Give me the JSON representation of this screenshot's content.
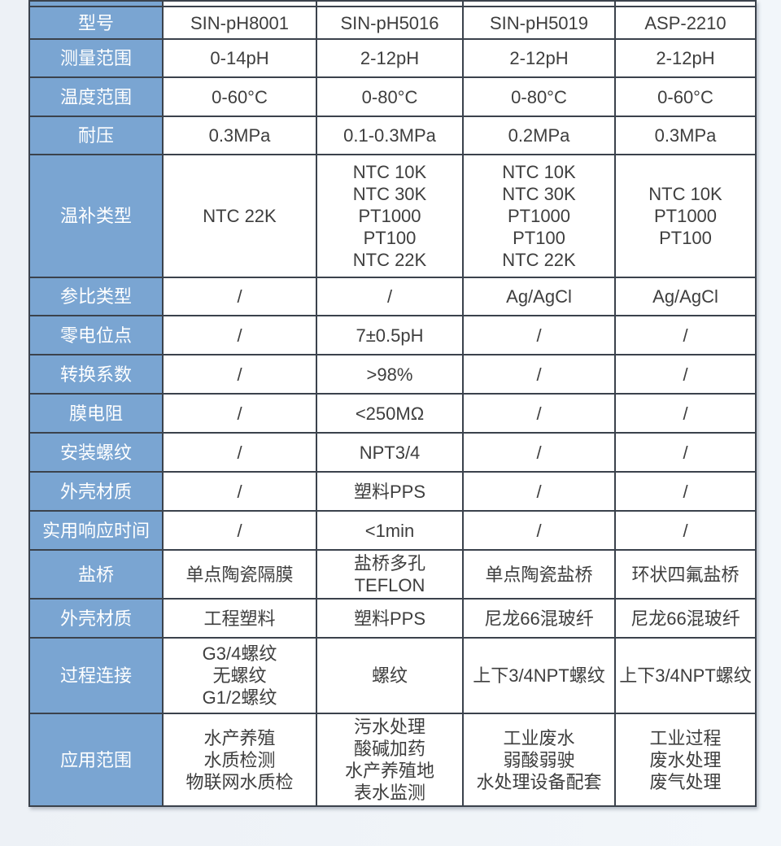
{
  "colors": {
    "header_cell_blue": "#7aa5d2",
    "header_text": "#ffffff",
    "cell_text": "#3e3e3e",
    "grid_border": "#3b424c",
    "page_background": "#f0f4f8",
    "cell_background": "#ffffff"
  },
  "table": {
    "rows": [
      {
        "header": "型号",
        "cells": [
          "SIN-pH8001",
          "SIN-pH5016",
          "SIN-pH5019",
          "ASP-2210"
        ]
      },
      {
        "header": "测量范围",
        "cells": [
          "0-14pH",
          "2-12pH",
          "2-12pH",
          "2-12pH"
        ]
      },
      {
        "header": "温度范围",
        "cells": [
          "0-60°C",
          "0-80°C",
          "0-80°C",
          "0-60°C"
        ]
      },
      {
        "header": "耐压",
        "cells": [
          "0.3MPa",
          "0.1-0.3MPa",
          "0.2MPa",
          "0.3MPa"
        ]
      },
      {
        "header": "温补类型",
        "cells": [
          "NTC 22K",
          "NTC 10K\nNTC 30K\nPT1000\nPT100\nNTC 22K",
          "NTC 10K\nNTC 30K\nPT1000\nPT100\nNTC 22K",
          "NTC 10K\nPT1000\nPT100"
        ]
      },
      {
        "header": "参比类型",
        "cells": [
          "/",
          "/",
          "Ag/AgCl",
          "Ag/AgCl"
        ]
      },
      {
        "header": "零电位点",
        "cells": [
          "/",
          "7±0.5pH",
          "/",
          "/"
        ]
      },
      {
        "header": "转换系数",
        "cells": [
          "/",
          ">98%",
          "/",
          "/"
        ]
      },
      {
        "header": "膜电阻",
        "cells": [
          "/",
          "<250MΩ",
          "/",
          "/"
        ]
      },
      {
        "header": "安装螺纹",
        "cells": [
          "/",
          "NPT3/4",
          "/",
          "/"
        ]
      },
      {
        "header": "外壳材质",
        "cells": [
          "/",
          "塑料PPS",
          "/",
          "/"
        ]
      },
      {
        "header": "实用响应时间",
        "cells": [
          "/",
          "<1min",
          "/",
          "/"
        ]
      },
      {
        "header": "盐桥",
        "cells": [
          "单点陶瓷隔膜",
          "盐桥多孔 TEFLON",
          "单点陶瓷盐桥",
          "环状四氟盐桥"
        ]
      },
      {
        "header": "外壳材质",
        "cells": [
          "工程塑料",
          "塑料PPS",
          "尼龙66混玻纤",
          "尼龙66混玻纤"
        ]
      },
      {
        "header": "过程连接",
        "cells": [
          "G3/4螺纹\n无螺纹\nG1/2螺纹",
          "螺纹",
          "上下3/4NPT螺纹",
          "上下3/4NPT螺纹"
        ]
      },
      {
        "header": "应用范围",
        "cells": [
          "水产养殖\n水质检测\n物联网水质检",
          "污水处理\n酸碱加药\n水产养殖地\n表水监测",
          "工业废水\n弱酸弱驶\n水处理设备配套",
          "工业过程\n废水处理\n废气处理"
        ]
      }
    ]
  }
}
